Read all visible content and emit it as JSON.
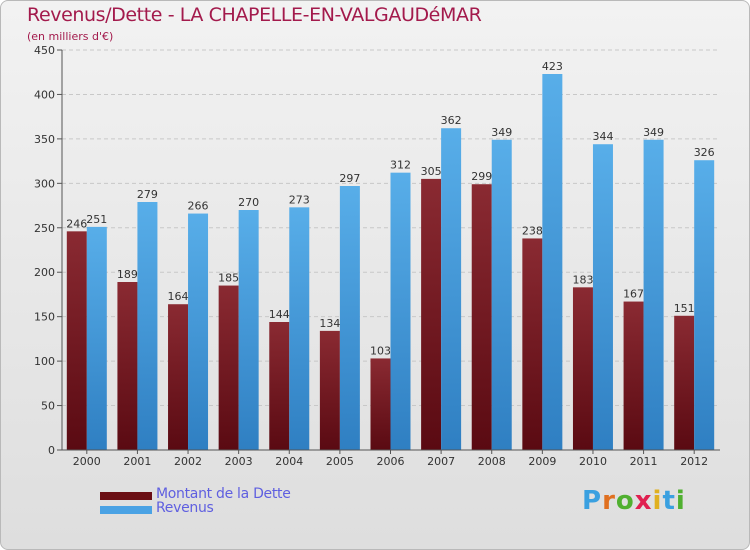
{
  "title": "Revenus/Dette - LA CHAPELLE-EN-VALGAUDéMAR",
  "subtitle": "(en milliers d'€)",
  "chart_data": {
    "type": "bar",
    "title": "Revenus/Dette - LA CHAPELLE-EN-VALGAUDéMAR",
    "ylabel": "(en milliers d'€)",
    "xlabel": "",
    "ylim": [
      0,
      450
    ],
    "yticks": [
      0,
      50,
      100,
      150,
      200,
      250,
      300,
      350,
      400,
      450
    ],
    "categories": [
      "2000",
      "2001",
      "2002",
      "2003",
      "2004",
      "2005",
      "2006",
      "2007",
      "2008",
      "2009",
      "2010",
      "2011",
      "2012"
    ],
    "series": [
      {
        "name": "Montant de la Dette",
        "color": "#7a1a22",
        "values": [
          246,
          189,
          164,
          185,
          144,
          134,
          103,
          305,
          299,
          238,
          183,
          167,
          151
        ]
      },
      {
        "name": "Revenus",
        "color": "#4aa2e4",
        "values": [
          251,
          279,
          266,
          270,
          273,
          297,
          312,
          362,
          349,
          423,
          344,
          349,
          326
        ]
      }
    ],
    "grid": true,
    "legend": "bottom-left"
  },
  "legend": {
    "dette_label": "Montant de la Dette",
    "revenus_label": "Revenus",
    "dette_color": "#6b0f14",
    "revenus_color": "#4aa2e4"
  },
  "logo": {
    "letters": [
      "P",
      "r",
      "o",
      "x",
      "i",
      "t",
      "i"
    ],
    "colors": [
      "#3aa0e0",
      "#e07020",
      "#50b030",
      "#e02050",
      "#e0b020",
      "#3aa0e0",
      "#50b030"
    ]
  }
}
